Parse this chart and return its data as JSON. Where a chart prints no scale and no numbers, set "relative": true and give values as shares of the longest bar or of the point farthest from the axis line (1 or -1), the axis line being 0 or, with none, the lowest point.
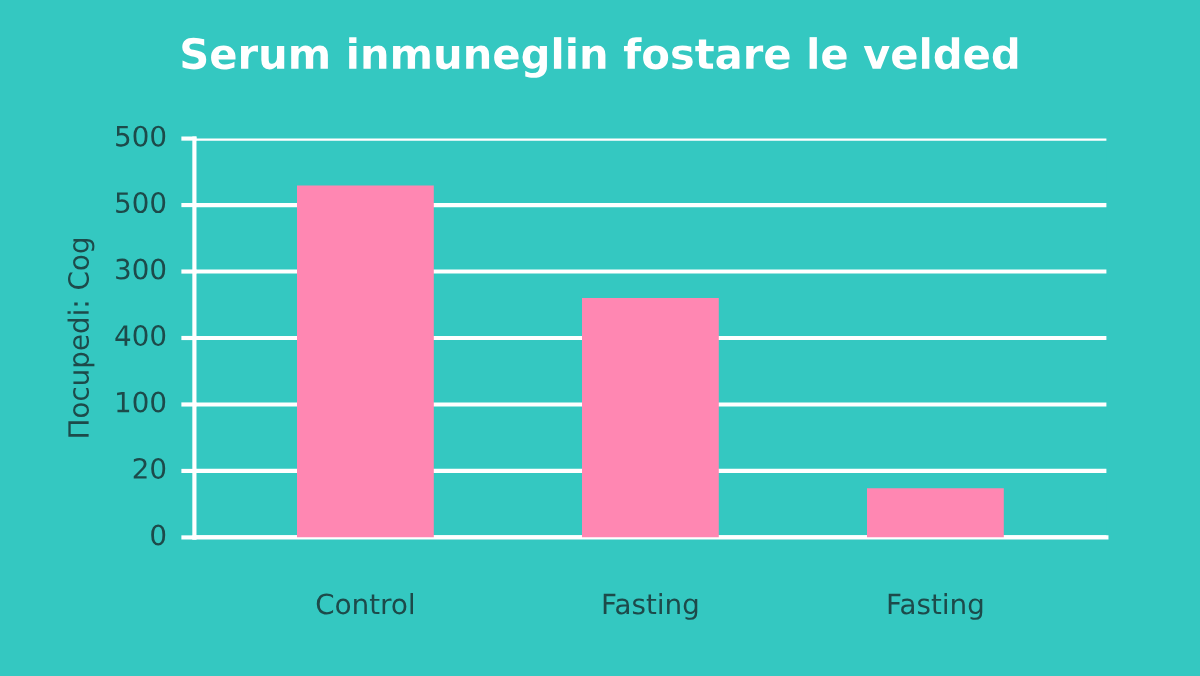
{
  "chart_data": {
    "type": "bar",
    "title": "Serum inmuneglin fostare le velded",
    "ylabel": "Πocupedi: Cog",
    "categories": [
      "Control",
      "Fasting",
      "Fasting"
    ],
    "series": [
      {
        "color": "#ff87b2",
        "values": [
          1,
          0.68,
          0.14
        ]
      }
    ],
    "relative": true,
    "annotations": [
      "500",
      "500",
      "300",
      "400",
      "100",
      "20",
      "0"
    ],
    "grid": "y",
    "legend": false
  }
}
